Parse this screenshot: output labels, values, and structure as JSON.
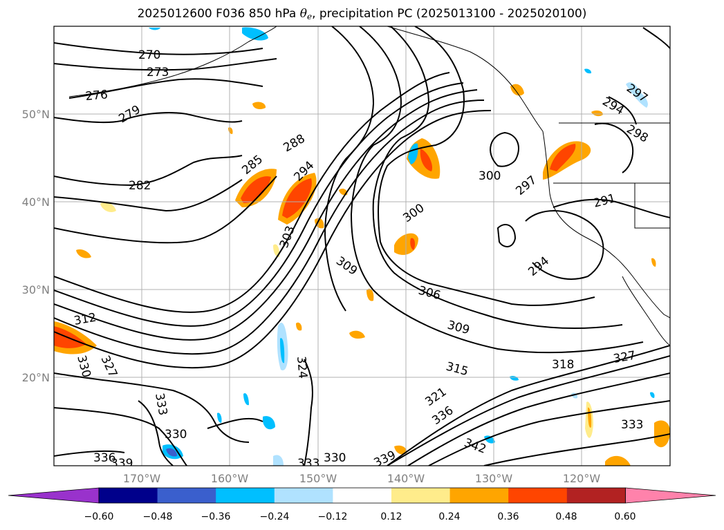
{
  "title": {
    "prefix": "2025012600 F036 850 hPa ",
    "theta": "θ",
    "sub": "e",
    "suffix": ", precipitation PC (2025013100 - 2025020100)"
  },
  "axes": {
    "lat_labels": [
      "50°N",
      "40°N",
      "30°N",
      "20°N"
    ],
    "lon_labels": [
      "170°W",
      "160°W",
      "150°W",
      "140°W",
      "130°W",
      "120°W"
    ]
  },
  "colorbar": {
    "ticks": [
      "−0.60",
      "−0.48",
      "−0.36",
      "−0.24",
      "−0.12",
      "0.12",
      "0.24",
      "0.36",
      "0.48",
      "0.60"
    ],
    "colors": [
      "#9932cc",
      "#00008b",
      "#3a5fcd",
      "#00bfff",
      "#b0e2ff",
      "#ffffff",
      "#ffec8b",
      "#ffa500",
      "#ff4500",
      "#b22222",
      "#ff82ab"
    ]
  },
  "contour_labels": [
    "270",
    "273",
    "276",
    "279",
    "282",
    "285",
    "288",
    "294",
    "300",
    "297",
    "291",
    "294",
    "297",
    "294",
    "298",
    "300",
    "303",
    "309",
    "306",
    "309",
    "312",
    "315",
    "318",
    "321",
    "327",
    "327",
    "330",
    "324",
    "333",
    "330",
    "336",
    "339",
    "333",
    "330",
    "339",
    "336",
    "342",
    "333"
  ]
}
